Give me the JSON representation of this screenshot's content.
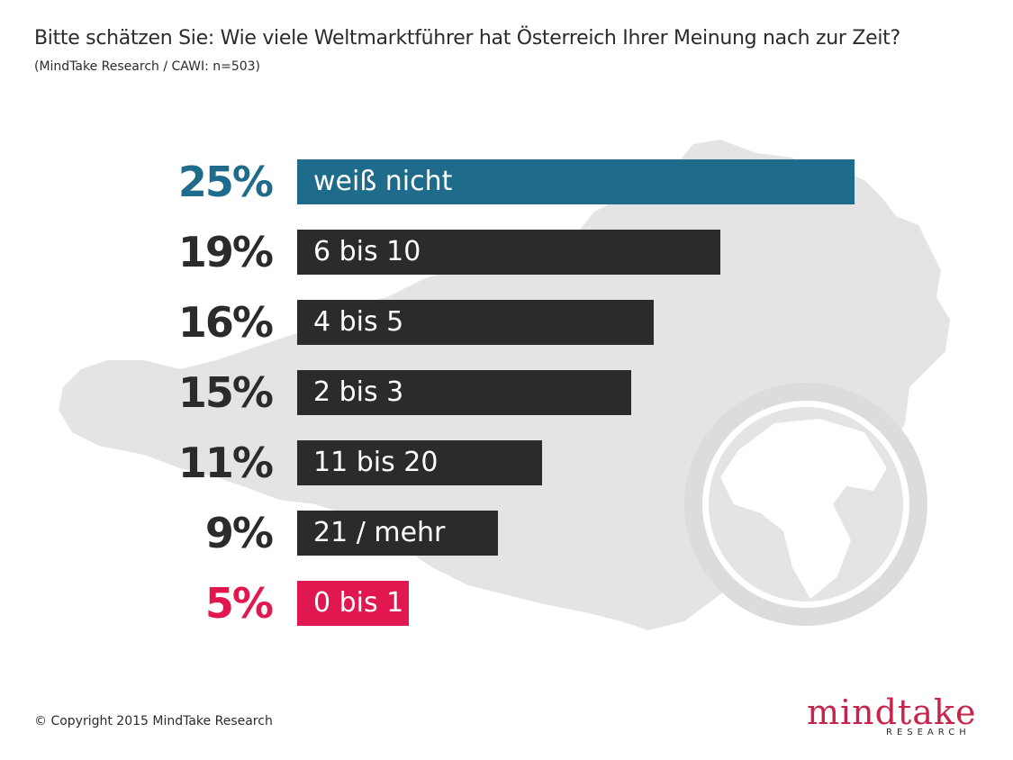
{
  "header": {
    "title": "Bitte schätzen Sie: Wie viele Weltmarktführer hat Österreich Ihrer Meinung nach zur Zeit?",
    "subtitle": "(MindTake Research / CAWI: n=503)"
  },
  "footer": {
    "copyright": "© Copyright 2015 MindTake Research",
    "logo_word": "mindtake",
    "logo_sub": "RESEARCH"
  },
  "colors": {
    "highlight_top": "#1e6b8c",
    "default_bar": "#2b2b2d",
    "highlight_bottom": "#e0184f",
    "background_art": "#e4e4e4"
  },
  "icons": [
    "austria-map-silhouette",
    "globe-icon"
  ],
  "chart_data": {
    "type": "bar",
    "orientation": "horizontal",
    "categories": [
      "weiß nicht",
      "6 bis 10",
      "4 bis 5",
      "2 bis 3",
      "11 bis 20",
      "21 / mehr",
      "0 bis 1"
    ],
    "values": [
      25,
      19,
      16,
      15,
      11,
      9,
      5
    ],
    "value_labels": [
      "25%",
      "19%",
      "16%",
      "15%",
      "11%",
      "9%",
      "5%"
    ],
    "bar_colors": [
      "#1e6b8c",
      "#2b2b2d",
      "#2b2b2d",
      "#2b2b2d",
      "#2b2b2d",
      "#2b2b2d",
      "#e0184f"
    ],
    "unit": "%",
    "xlim": [
      0,
      25
    ],
    "grid": false,
    "legend": "none"
  }
}
